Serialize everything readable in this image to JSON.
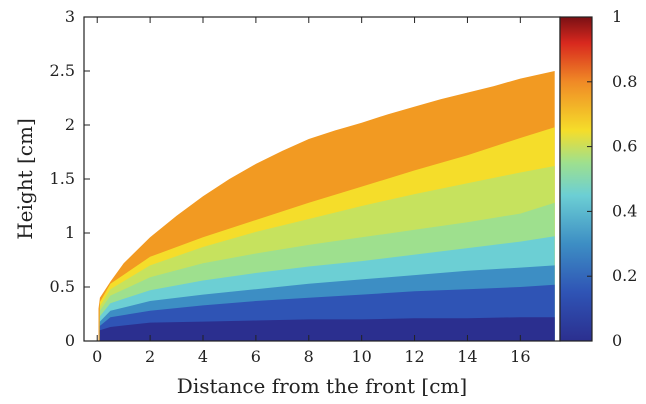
{
  "chart_data": {
    "type": "heatmap",
    "title": "",
    "xlabel": "Distance from the front [cm]",
    "ylabel": "Height [cm]",
    "xlim": [
      -0.5,
      17.5
    ],
    "ylim": [
      0,
      3
    ],
    "x_ticks": [
      "0",
      "2",
      "4",
      "6",
      "8",
      "10",
      "12",
      "14",
      "16"
    ],
    "y_ticks": [
      "0",
      "0.5",
      "1",
      "1.5",
      "2",
      "2.5",
      "3"
    ],
    "colorbar": {
      "range": [
        0,
        1
      ],
      "ticks": [
        "0",
        "0.2",
        "0.4",
        "0.6",
        "0.8",
        "1"
      ],
      "colormap": "jet-like"
    },
    "contour_bands": [
      {
        "value": 0.1,
        "color": "#2b2f8f",
        "upper_boundary": [
          [
            0.1,
            0.1
          ],
          [
            0.5,
            0.13
          ],
          [
            2,
            0.17
          ],
          [
            4,
            0.18
          ],
          [
            6,
            0.19
          ],
          [
            8,
            0.2
          ],
          [
            10,
            0.2
          ],
          [
            12,
            0.21
          ],
          [
            14,
            0.21
          ],
          [
            16,
            0.22
          ],
          [
            17.3,
            0.22
          ]
        ]
      },
      {
        "value": 0.22,
        "color": "#2f54b5",
        "upper_boundary": [
          [
            0.1,
            0.14
          ],
          [
            0.5,
            0.22
          ],
          [
            2,
            0.28
          ],
          [
            4,
            0.33
          ],
          [
            6,
            0.37
          ],
          [
            8,
            0.4
          ],
          [
            10,
            0.43
          ],
          [
            12,
            0.46
          ],
          [
            14,
            0.48
          ],
          [
            16,
            0.5
          ],
          [
            17.3,
            0.52
          ]
        ]
      },
      {
        "value": 0.3,
        "color": "#3d8ec4",
        "upper_boundary": [
          [
            0.1,
            0.18
          ],
          [
            0.5,
            0.28
          ],
          [
            2,
            0.37
          ],
          [
            4,
            0.43
          ],
          [
            6,
            0.48
          ],
          [
            8,
            0.53
          ],
          [
            10,
            0.57
          ],
          [
            12,
            0.61
          ],
          [
            14,
            0.65
          ],
          [
            16,
            0.68
          ],
          [
            17.3,
            0.7
          ]
        ]
      },
      {
        "value": 0.4,
        "color": "#6ccfd4",
        "upper_boundary": [
          [
            0.1,
            0.23
          ],
          [
            0.5,
            0.35
          ],
          [
            2,
            0.47
          ],
          [
            4,
            0.56
          ],
          [
            6,
            0.63
          ],
          [
            8,
            0.69
          ],
          [
            10,
            0.74
          ],
          [
            12,
            0.8
          ],
          [
            14,
            0.86
          ],
          [
            16,
            0.92
          ],
          [
            17.3,
            0.97
          ]
        ]
      },
      {
        "value": 0.5,
        "color": "#9ee08e",
        "upper_boundary": [
          [
            0.1,
            0.28
          ],
          [
            0.5,
            0.42
          ],
          [
            2,
            0.59
          ],
          [
            4,
            0.72
          ],
          [
            6,
            0.81
          ],
          [
            8,
            0.89
          ],
          [
            10,
            0.96
          ],
          [
            12,
            1.03
          ],
          [
            14,
            1.1
          ],
          [
            16,
            1.18
          ],
          [
            17.3,
            1.28
          ]
        ]
      },
      {
        "value": 0.55,
        "color": "#c6e25e",
        "upper_boundary": [
          [
            0.1,
            0.32
          ],
          [
            0.5,
            0.48
          ],
          [
            2,
            0.7
          ],
          [
            4,
            0.87
          ],
          [
            6,
            1.01
          ],
          [
            8,
            1.13
          ],
          [
            10,
            1.25
          ],
          [
            12,
            1.36
          ],
          [
            14,
            1.46
          ],
          [
            16,
            1.56
          ],
          [
            17.3,
            1.62
          ]
        ]
      },
      {
        "value": 0.62,
        "color": "#f5dd2a",
        "upper_boundary": [
          [
            0.1,
            0.36
          ],
          [
            0.5,
            0.53
          ],
          [
            2,
            0.78
          ],
          [
            4,
            0.96
          ],
          [
            6,
            1.12
          ],
          [
            8,
            1.28
          ],
          [
            10,
            1.43
          ],
          [
            12,
            1.58
          ],
          [
            14,
            1.72
          ],
          [
            16,
            1.88
          ],
          [
            17.3,
            1.98
          ]
        ]
      },
      {
        "value": 0.7,
        "color": "#f29a22",
        "upper_boundary": [
          [
            0.05,
            0.3
          ],
          [
            0.1,
            0.4
          ],
          [
            0.5,
            0.55
          ],
          [
            1,
            0.72
          ],
          [
            2,
            0.96
          ],
          [
            3,
            1.16
          ],
          [
            4,
            1.34
          ],
          [
            5,
            1.5
          ],
          [
            6,
            1.64
          ],
          [
            7,
            1.76
          ],
          [
            8,
            1.87
          ],
          [
            9,
            1.95
          ],
          [
            10,
            2.02
          ],
          [
            11,
            2.1
          ],
          [
            12,
            2.17
          ],
          [
            13,
            2.24
          ],
          [
            14,
            2.3
          ],
          [
            15,
            2.36
          ],
          [
            16,
            2.43
          ],
          [
            17.3,
            2.5
          ]
        ]
      }
    ]
  }
}
